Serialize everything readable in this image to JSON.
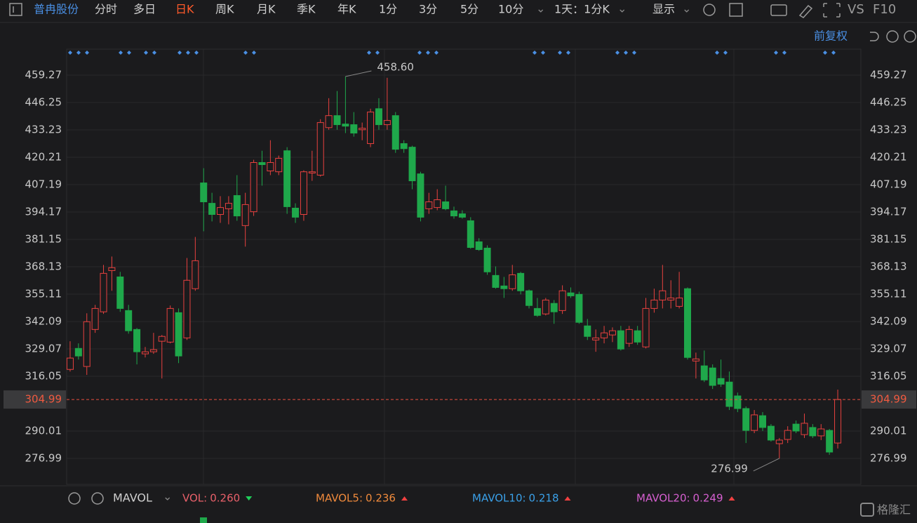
{
  "toolbar": {
    "stock": "普冉股份",
    "periods": [
      "分时",
      "多日",
      "日K",
      "周K",
      "月K",
      "季K",
      "年K",
      "1分",
      "3分",
      "5分",
      "10分"
    ],
    "active": "日K",
    "interval": "1天：1分K",
    "display": "显示",
    "compare": "VS",
    "f10": "F10"
  },
  "adjust": "前复权",
  "chart_data": {
    "type": "candlestick",
    "up_color": "#e8413f",
    "down_color": "#1fa84b",
    "open": [
      319.3,
      329.3,
      320.7,
      338.3,
      346.7,
      366.3,
      363.3,
      347.3,
      338.3,
      326.7,
      327.7,
      332.7,
      332.3,
      346.3,
      334.3,
      357.7,
      408.0,
      398.3,
      393.0,
      395.7,
      402.0,
      387.7,
      394.3,
      417.7,
      413.7,
      413.3,
      423.3,
      396.0,
      393.0,
      412.7,
      411.7,
      434.3,
      440.0,
      436.0,
      435.7,
      433.3,
      426.7,
      443.3,
      435.7,
      440.0,
      426.7,
      425.0,
      412.3,
      395.7,
      396.3,
      399.0,
      394.7,
      393.3,
      390.0,
      380.0,
      377.0,
      364.0,
      359.0,
      357.7,
      365.0,
      356.7,
      348.3,
      345.7,
      350.7,
      347.3,
      355.7,
      355.0,
      340.0,
      333.3,
      334.3,
      335.7,
      337.7,
      331.7,
      337.7,
      330.0,
      348.3,
      352.3,
      352.3,
      349.3,
      357.7,
      323.3,
      321.0,
      320.0,
      315.0,
      313.3,
      306.7,
      300.7,
      290.3,
      297.3,
      292.3,
      284.0,
      286.0,
      293.3,
      288.3,
      291.7,
      287.7,
      290.3,
      284.3
    ],
    "high": [
      332.7,
      331.7,
      346.0,
      350.0,
      369.0,
      373.0,
      365.7,
      350.0,
      339.0,
      330.0,
      336.7,
      335.7,
      349.7,
      348.3,
      372.3,
      382.3,
      415.0,
      403.3,
      401.7,
      401.7,
      411.7,
      403.3,
      419.0,
      423.3,
      428.3,
      421.0,
      425.0,
      398.3,
      414.0,
      423.3,
      438.3,
      448.3,
      451.7,
      458.6,
      441.7,
      436.7,
      443.3,
      448.3,
      458.0,
      441.7,
      428.3,
      425.7,
      413.3,
      403.3,
      405.0,
      406.7,
      396.7,
      395.0,
      391.7,
      381.7,
      378.3,
      368.3,
      363.3,
      369.0,
      365.7,
      357.3,
      353.3,
      353.3,
      352.3,
      359.3,
      358.3,
      356.3,
      343.3,
      338.3,
      340.0,
      339.3,
      340.0,
      340.0,
      340.0,
      353.3,
      357.7,
      369.0,
      361.7,
      365.7,
      358.3,
      327.3,
      328.3,
      321.7,
      324.0,
      318.3,
      308.3,
      301.7,
      300.0,
      299.0,
      293.3,
      286.7,
      292.3,
      295.0,
      298.3,
      293.3,
      293.3,
      291.0,
      309.7
    ],
    "low": [
      318.3,
      324.0,
      316.7,
      336.7,
      345.7,
      356.7,
      346.7,
      336.3,
      321.7,
      325.0,
      326.7,
      315.0,
      331.7,
      322.3,
      333.3,
      356.7,
      385.0,
      389.7,
      389.0,
      388.3,
      390.0,
      377.7,
      392.3,
      406.7,
      411.7,
      411.7,
      393.3,
      389.0,
      390.0,
      409.0,
      411.0,
      433.3,
      433.3,
      431.7,
      430.0,
      428.3,
      425.0,
      433.3,
      433.3,
      422.3,
      422.3,
      405.0,
      389.7,
      393.3,
      395.0,
      395.0,
      391.0,
      391.0,
      376.7,
      375.7,
      364.3,
      357.7,
      353.3,
      356.7,
      355.0,
      348.3,
      344.3,
      345.0,
      341.0,
      345.7,
      353.3,
      341.0,
      333.3,
      327.7,
      331.7,
      332.3,
      328.3,
      330.0,
      331.0,
      329.3,
      346.3,
      348.3,
      348.3,
      348.3,
      324.0,
      315.0,
      313.3,
      310.0,
      311.0,
      300.0,
      299.0,
      284.3,
      289.0,
      290.0,
      285.0,
      276.99,
      284.3,
      289.0,
      286.7,
      286.7,
      285.7,
      278.7,
      281.7
    ],
    "close": [
      324.7,
      325.7,
      342.0,
      348.3,
      365.0,
      367.7,
      348.3,
      337.7,
      327.7,
      327.7,
      328.7,
      335.0,
      348.3,
      325.7,
      361.7,
      371.0,
      399.0,
      393.0,
      396.3,
      398.3,
      392.3,
      397.7,
      417.7,
      416.7,
      417.7,
      419.7,
      396.7,
      391.7,
      413.3,
      413.3,
      436.7,
      440.0,
      435.7,
      435.0,
      431.7,
      434.0,
      441.7,
      435.7,
      437.7,
      424.0,
      424.3,
      409.0,
      391.7,
      399.0,
      400.0,
      395.7,
      392.3,
      391.7,
      377.3,
      376.3,
      365.7,
      358.3,
      357.7,
      364.3,
      356.7,
      349.7,
      345.0,
      352.3,
      346.7,
      356.7,
      354.3,
      341.7,
      335.0,
      334.3,
      336.7,
      337.7,
      329.0,
      338.3,
      332.3,
      348.3,
      352.3,
      356.7,
      353.3,
      353.3,
      325.0,
      324.3,
      314.3,
      311.7,
      312.3,
      301.7,
      300.7,
      290.3,
      297.7,
      291.7,
      285.7,
      285.7,
      290.3,
      290.0,
      293.7,
      287.7,
      291.0,
      280.0,
      304.99
    ],
    "ylim": [
      264.63,
      471.62
    ],
    "yticks": [
      459.27,
      446.25,
      433.23,
      420.21,
      407.19,
      394.17,
      381.15,
      368.13,
      355.11,
      342.09,
      329.07,
      316.05,
      290.01,
      276.99
    ],
    "last_price": 304.99,
    "annotations": [
      {
        "text": "458.60",
        "index": 33,
        "value": 458.6
      },
      {
        "text": "276.99",
        "index": 85,
        "value": 276.99
      }
    ],
    "grid": true
  },
  "volume_panel": {
    "indicator": "MAVOL",
    "items": [
      {
        "name": "VOL:",
        "value": "0.260",
        "color": "#e8606a"
      },
      {
        "name": "MAVOL5:",
        "value": "0.236",
        "color": "#f08a3c"
      },
      {
        "name": "MAVOL10:",
        "value": "0.218",
        "color": "#3aa0e8"
      },
      {
        "name": "MAVOL20:",
        "value": "0.249",
        "color": "#d65fd0"
      }
    ]
  },
  "watermark": "格隆汇"
}
